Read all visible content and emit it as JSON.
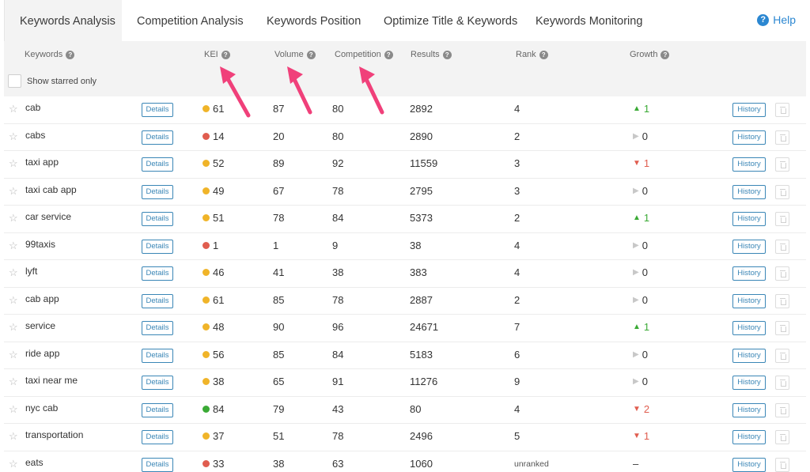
{
  "tabs": [
    {
      "label": "Keywords Analysis",
      "active": true
    },
    {
      "label": "Competition Analysis",
      "active": false
    },
    {
      "label": "Keywords Position",
      "active": false
    },
    {
      "label": "Optimize Title & Keywords",
      "active": false
    },
    {
      "label": "Keywords Monitoring",
      "active": false
    }
  ],
  "help": {
    "label": "Help",
    "icon": "question-circle-icon"
  },
  "columns": {
    "keywords": "Keywords",
    "kei": "KEI",
    "volume": "Volume",
    "competition": "Competition",
    "results": "Results",
    "rank": "Rank",
    "growth": "Growth"
  },
  "filter": {
    "show_starred_label": "Show starred only",
    "checked": false
  },
  "buttons": {
    "details": "Details",
    "history": "History"
  },
  "colors": {
    "accent": "#3a86b6",
    "help": "#2b87d1",
    "kei_orange": "#f0b429",
    "kei_red": "#e05d4f",
    "kei_green": "#3aaa35",
    "growth_up": "#3aaa35",
    "growth_down": "#e05d4f",
    "growth_flat": "#c8c8c8",
    "annotation_arrow": "#f0407a"
  },
  "rows": [
    {
      "keyword": "cab",
      "kei": "61",
      "kei_color": "orange",
      "volume": "87",
      "competition": "80",
      "results": "2892",
      "rank": "4",
      "growth": "1",
      "growth_dir": "up"
    },
    {
      "keyword": "cabs",
      "kei": "14",
      "kei_color": "red",
      "volume": "20",
      "competition": "80",
      "results": "2890",
      "rank": "2",
      "growth": "0",
      "growth_dir": "flat"
    },
    {
      "keyword": "taxi app",
      "kei": "52",
      "kei_color": "orange",
      "volume": "89",
      "competition": "92",
      "results": "11559",
      "rank": "3",
      "growth": "1",
      "growth_dir": "down"
    },
    {
      "keyword": "taxi cab app",
      "kei": "49",
      "kei_color": "orange",
      "volume": "67",
      "competition": "78",
      "results": "2795",
      "rank": "3",
      "growth": "0",
      "growth_dir": "flat"
    },
    {
      "keyword": "car service",
      "kei": "51",
      "kei_color": "orange",
      "volume": "78",
      "competition": "84",
      "results": "5373",
      "rank": "2",
      "growth": "1",
      "growth_dir": "up"
    },
    {
      "keyword": "99taxis",
      "kei": "1",
      "kei_color": "red",
      "volume": "1",
      "competition": "9",
      "results": "38",
      "rank": "4",
      "growth": "0",
      "growth_dir": "flat"
    },
    {
      "keyword": "lyft",
      "kei": "46",
      "kei_color": "orange",
      "volume": "41",
      "competition": "38",
      "results": "383",
      "rank": "4",
      "growth": "0",
      "growth_dir": "flat"
    },
    {
      "keyword": "cab app",
      "kei": "61",
      "kei_color": "orange",
      "volume": "85",
      "competition": "78",
      "results": "2887",
      "rank": "2",
      "growth": "0",
      "growth_dir": "flat"
    },
    {
      "keyword": "service",
      "kei": "48",
      "kei_color": "orange",
      "volume": "90",
      "competition": "96",
      "results": "24671",
      "rank": "7",
      "growth": "1",
      "growth_dir": "up"
    },
    {
      "keyword": "ride app",
      "kei": "56",
      "kei_color": "orange",
      "volume": "85",
      "competition": "84",
      "results": "5183",
      "rank": "6",
      "growth": "0",
      "growth_dir": "flat"
    },
    {
      "keyword": "taxi near me",
      "kei": "38",
      "kei_color": "orange",
      "volume": "65",
      "competition": "91",
      "results": "11276",
      "rank": "9",
      "growth": "0",
      "growth_dir": "flat"
    },
    {
      "keyword": "nyc cab",
      "kei": "84",
      "kei_color": "green",
      "volume": "79",
      "competition": "43",
      "results": "80",
      "rank": "4",
      "growth": "2",
      "growth_dir": "down"
    },
    {
      "keyword": "transportation",
      "kei": "37",
      "kei_color": "orange",
      "volume": "51",
      "competition": "78",
      "results": "2496",
      "rank": "5",
      "growth": "1",
      "growth_dir": "down"
    },
    {
      "keyword": "eats",
      "kei": "33",
      "kei_color": "red",
      "volume": "38",
      "competition": "63",
      "results": "1060",
      "rank": "unranked",
      "growth": "–",
      "growth_dir": "none"
    }
  ]
}
